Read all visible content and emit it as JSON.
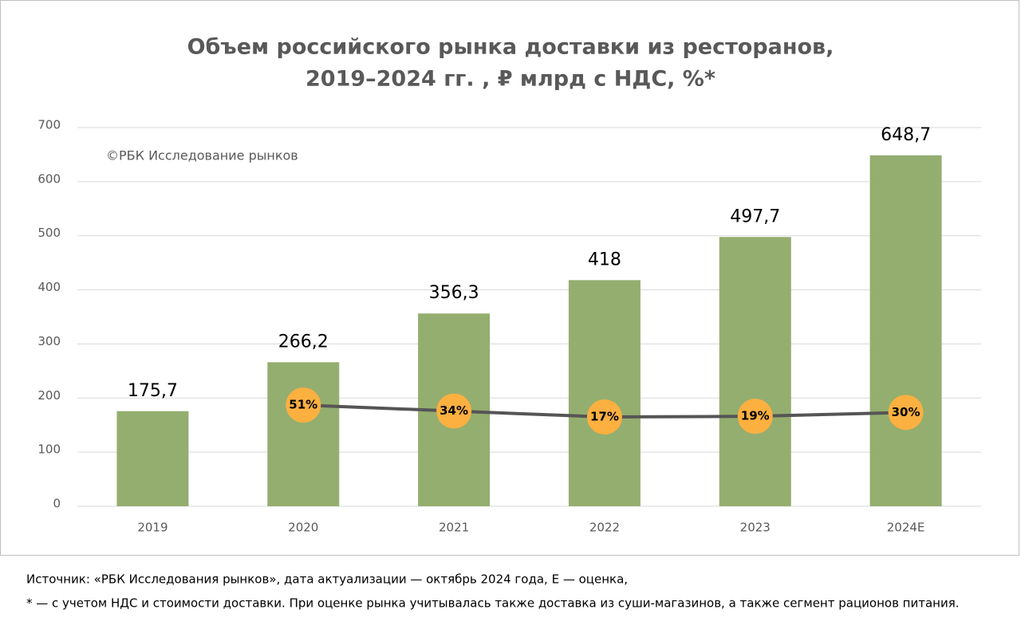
{
  "chart_data": {
    "type": "bar",
    "title": [
      "Объем российского рынка доставки из ресторанов,",
      "2019–2024 гг. , ₽ млрд с НДС, %*"
    ],
    "annotation": "©РБК Исследование рынков",
    "categories": [
      "2019",
      "2020",
      "2021",
      "2022",
      "2023",
      "2024E"
    ],
    "values": [
      175.7,
      266.2,
      356.3,
      418,
      497.7,
      648.7
    ],
    "value_labels": [
      "175,7",
      "266,2",
      "356,3",
      "418",
      "497,7",
      "648,7"
    ],
    "color": "#94ae6f",
    "ylim": [
      0,
      700
    ],
    "yticks": [
      0,
      100,
      200,
      300,
      400,
      500,
      600,
      700
    ],
    "grid": true,
    "series": [
      {
        "type": "line",
        "axis": "y2",
        "color": "#555555",
        "marker_color": "#fbb040",
        "values": [
          null,
          51,
          34,
          17,
          19,
          30
        ],
        "value_labels": [
          null,
          "51%",
          "34%",
          "17%",
          "19%",
          "30%"
        ]
      }
    ],
    "y2lim": [
      -238,
      844
    ],
    "notes": [
      "Источник: «РБК Исследования рынков», дата актуализации — октябрь 2024 года, E — оценка,",
      "* — с учетом НДС и стоимости доставки. При оценке рынка учитывалась также доставка из суши-магазинов, а также сегмент рационов питания."
    ]
  }
}
